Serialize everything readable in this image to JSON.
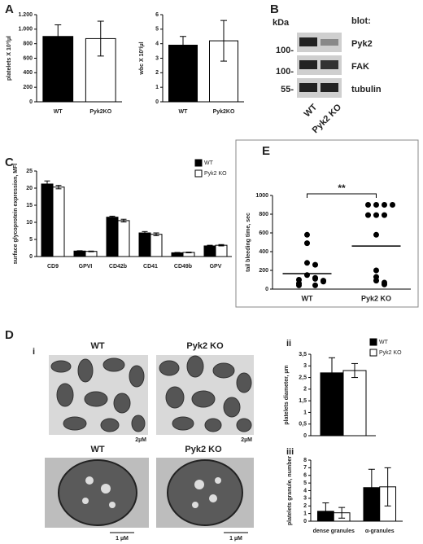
{
  "panels": {
    "letters": [
      "A",
      "B",
      "C",
      "D",
      "E"
    ],
    "sub": [
      "i",
      "ii",
      "iii"
    ]
  },
  "blot": {
    "unit": "kDa",
    "title": "blot:",
    "markers": [
      "100-",
      "100-",
      "55-"
    ],
    "proteins": [
      "Pyk2",
      "FAK",
      "tubulin"
    ],
    "lanes": [
      "WT",
      "Pyk2 KO"
    ]
  },
  "micrographs": {
    "top_labels": [
      "WT",
      "Pyk2 KO"
    ],
    "top_scales": [
      "2µM",
      "2µM"
    ],
    "bottom_labels": [
      "WT",
      "Pyk2 KO"
    ],
    "bottom_scales": [
      "1 µM",
      "1 µM"
    ]
  },
  "chart_data": [
    {
      "type": "bar",
      "y_label": "platelets X 10³/µl",
      "categories": [
        "WT",
        "Pyk2KO"
      ],
      "values": [
        900,
        870
      ],
      "errors": [
        160,
        240
      ],
      "colors": [
        "#000000",
        "#ffffff"
      ],
      "ylim": [
        0,
        1200
      ],
      "yticks": [
        0,
        200,
        400,
        600,
        800,
        {
          "value": 1000,
          "label": "1.000"
        },
        {
          "value": 1200,
          "label": "1.200"
        }
      ]
    },
    {
      "type": "bar",
      "y_label": "wbc X 10³/µl",
      "categories": [
        "WT",
        "Pyk2KO"
      ],
      "values": [
        3.9,
        4.2
      ],
      "errors": [
        0.6,
        1.4
      ],
      "colors": [
        "#000000",
        "#ffffff"
      ],
      "ylim": [
        0,
        6
      ],
      "yticks": [
        0,
        1,
        2,
        3,
        4,
        5,
        6
      ]
    },
    {
      "type": "bar",
      "y_label": "surface glycoprotein expression, MFI",
      "categories": [
        "CD9",
        "GPVI",
        "CD42b",
        "CD41",
        "CD49b",
        "GPV"
      ],
      "series": [
        {
          "name": "WT",
          "color": "#000000",
          "values": [
            21.2,
            1.6,
            11.5,
            6.9,
            1.1,
            3.1
          ],
          "errors": [
            0.9,
            0.1,
            0.3,
            0.4,
            0.1,
            0.2
          ]
        },
        {
          "name": "Pyk2 KO",
          "color": "#ffffff",
          "values": [
            20.3,
            1.5,
            10.5,
            6.5,
            1.2,
            3.3
          ],
          "errors": [
            0.5,
            0.1,
            0.4,
            0.4,
            0.1,
            0.2
          ]
        }
      ],
      "ylim": [
        0,
        25
      ],
      "yticks": [
        0,
        5,
        10,
        15,
        20,
        25
      ],
      "legend": true
    },
    {
      "type": "strip",
      "y_label": "tail bleeding time, sec",
      "categories": [
        "WT",
        "Pyk2 KO"
      ],
      "values": [
        [
          580,
          490,
          280,
          260,
          150,
          120,
          110,
          100,
          90,
          80,
          60,
          40,
          40
        ],
        [
          900,
          900,
          900,
          900,
          790,
          790,
          790,
          580,
          200,
          130,
          90,
          70,
          50
        ]
      ],
      "means": [
        165,
        460
      ],
      "color": "#000000",
      "annotation": "**",
      "ylim": [
        0,
        1000
      ],
      "yticks": [
        0,
        200,
        400,
        600,
        800,
        1000
      ]
    },
    {
      "type": "bar",
      "y_label": "platelets diameter, µm",
      "categories": [
        null
      ],
      "series": [
        {
          "name": "WT",
          "color": "#000000",
          "values": [
            2.7
          ],
          "errors": [
            0.65
          ]
        },
        {
          "name": "Pyk2 KO",
          "color": "#ffffff",
          "values": [
            2.8
          ],
          "errors": [
            0.3
          ]
        }
      ],
      "ylim": [
        0,
        3.5
      ],
      "yticks": [
        0,
        {
          "value": 0.5,
          "label": "0,5"
        },
        1,
        {
          "value": 1.5,
          "label": "1,5"
        },
        2,
        {
          "value": 2.5,
          "label": "2,5"
        },
        3,
        {
          "value": 3.5,
          "label": "3,5"
        }
      ],
      "legend": true
    },
    {
      "type": "bar",
      "y_label": "platelets granule, number",
      "categories": [
        "dense granules",
        "α-granules"
      ],
      "series": [
        {
          "name": "WT",
          "color": "#000000",
          "values": [
            1.3,
            4.4
          ],
          "errors": [
            1.1,
            2.4
          ]
        },
        {
          "name": "Pyk2 KO",
          "color": "#ffffff",
          "values": [
            1.1,
            4.5
          ],
          "errors": [
            0.7,
            2.5
          ]
        }
      ],
      "ylim": [
        0,
        8
      ],
      "yticks": [
        0,
        1,
        2,
        3,
        4,
        5,
        6,
        7,
        8
      ],
      "legend": false
    }
  ]
}
